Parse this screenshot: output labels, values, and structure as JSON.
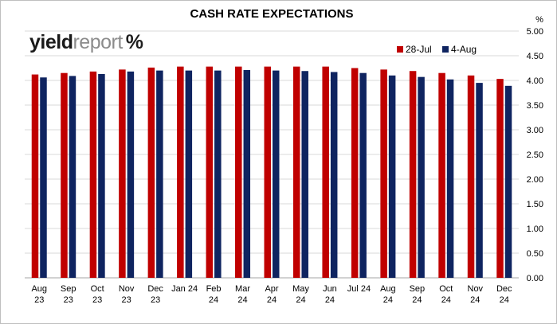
{
  "chart_data": {
    "type": "bar",
    "title": "CASH RATE EXPECTATIONS",
    "y_unit_label": "%",
    "ylim": [
      0,
      5
    ],
    "yticks": [
      "0.00",
      "0.50",
      "1.00",
      "1.50",
      "2.00",
      "2.50",
      "3.00",
      "3.50",
      "4.00",
      "4.50",
      "5.00"
    ],
    "grid": true,
    "legend_position": "top-right",
    "categories": [
      [
        "Aug",
        "23"
      ],
      [
        "Sep",
        "23"
      ],
      [
        "Oct",
        "23"
      ],
      [
        "Nov",
        "23"
      ],
      [
        "Dec",
        "23"
      ],
      [
        "Jan 24"
      ],
      [
        "Feb",
        "24"
      ],
      [
        "Mar",
        "24"
      ],
      [
        "Apr",
        "24"
      ],
      [
        "May",
        "24"
      ],
      [
        "Jun",
        "24"
      ],
      [
        "Jul 24"
      ],
      [
        "Aug",
        "24"
      ],
      [
        "Sep",
        "24"
      ],
      [
        "Oct",
        "24"
      ],
      [
        "Nov",
        "24"
      ],
      [
        "Dec",
        "24"
      ]
    ],
    "series": [
      {
        "name": "28-Jul",
        "color": "#c00000",
        "values": [
          4.12,
          4.15,
          4.18,
          4.22,
          4.26,
          4.28,
          4.28,
          4.28,
          4.28,
          4.28,
          4.28,
          4.25,
          4.22,
          4.19,
          4.15,
          4.1,
          4.03
        ]
      },
      {
        "name": "4-Aug",
        "color": "#0f2460",
        "values": [
          4.06,
          4.09,
          4.13,
          4.18,
          4.2,
          4.2,
          4.2,
          4.21,
          4.2,
          4.19,
          4.17,
          4.15,
          4.1,
          4.07,
          4.02,
          3.95,
          3.89
        ]
      }
    ]
  },
  "logo": {
    "part1": "yield",
    "part2": "report",
    "part3": "%"
  }
}
